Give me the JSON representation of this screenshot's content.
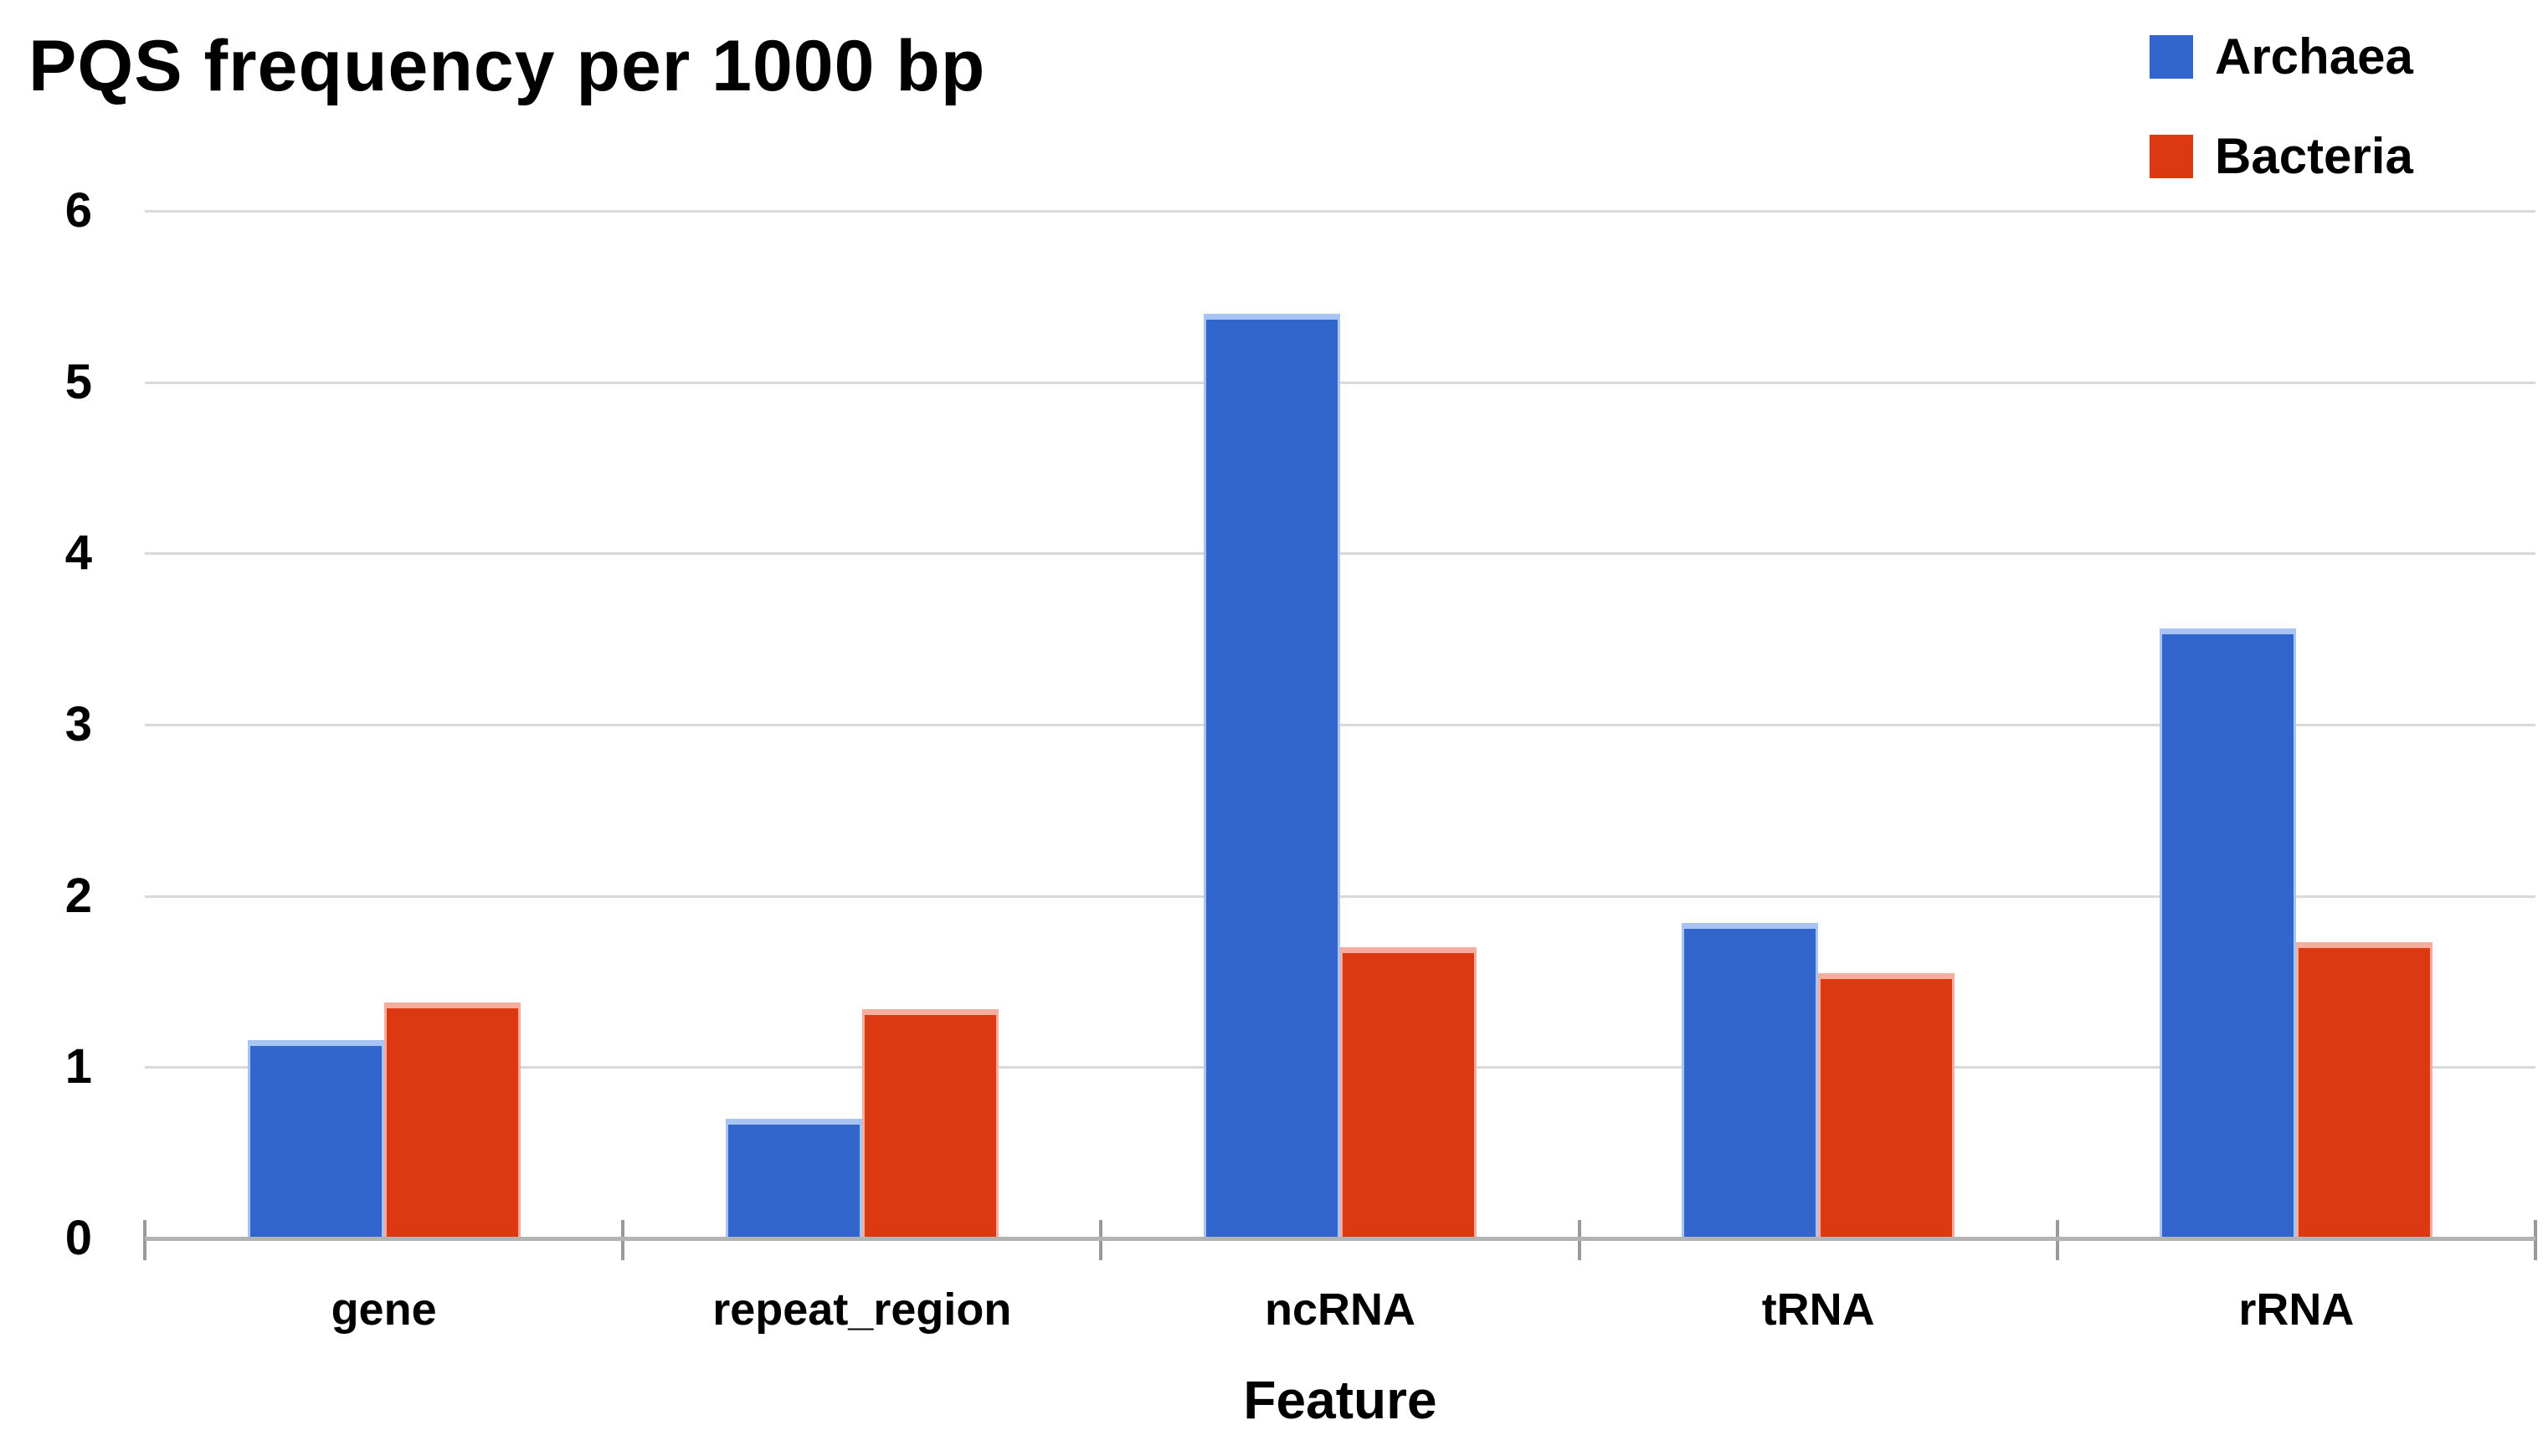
{
  "title": "PQS frequency per 1000 bp",
  "axes": {
    "x_title": "Feature",
    "y_tick_labels": [
      "0",
      "1",
      "2",
      "3",
      "4",
      "5",
      "6"
    ]
  },
  "legend": {
    "position": "top-right",
    "items": [
      {
        "label": "Archaea",
        "color": "#3366CC"
      },
      {
        "label": "Bacteria",
        "color": "#DC3912"
      }
    ]
  },
  "chart_data": {
    "type": "bar",
    "title": "PQS frequency per 1000 bp",
    "xlabel": "Feature",
    "ylabel": "",
    "categories": [
      "gene",
      "repeat_region",
      "ncRNA",
      "tRNA",
      "rRNA"
    ],
    "series": [
      {
        "name": "Archaea",
        "color": "#3366CC",
        "edge_color": "#A7C4F2",
        "values": [
          1.16,
          0.7,
          5.4,
          1.84,
          3.56
        ]
      },
      {
        "name": "Bacteria",
        "color": "#DC3912",
        "edge_color": "#F5AD9D",
        "values": [
          1.38,
          1.34,
          1.7,
          1.55,
          1.73
        ]
      }
    ],
    "ylim": [
      0,
      6
    ],
    "yticks": [
      0,
      1,
      2,
      3,
      4,
      5,
      6
    ],
    "grid": true,
    "legend_position": "top-right",
    "colors": {
      "gridline": "#D9D9D9",
      "baseline": "#B3B3B3",
      "tick": "#999999",
      "text": "#000000",
      "background": "#FFFFFF"
    }
  }
}
